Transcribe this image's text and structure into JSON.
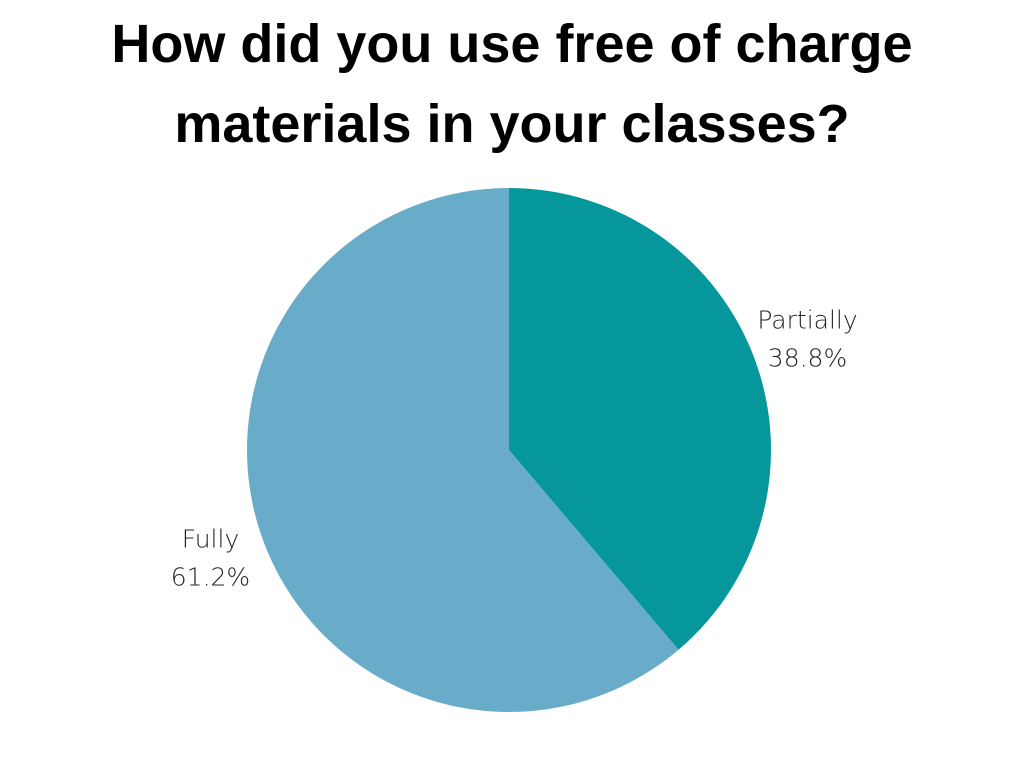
{
  "chart_data": {
    "type": "pie",
    "title": "How did you use free of charge materials in your classes?",
    "categories": [
      "Partially",
      "Fully"
    ],
    "values": [
      38.8,
      61.2
    ],
    "value_labels": [
      "38.8%",
      "61.2%"
    ],
    "colors": [
      "#05979c",
      "#69acca"
    ]
  }
}
